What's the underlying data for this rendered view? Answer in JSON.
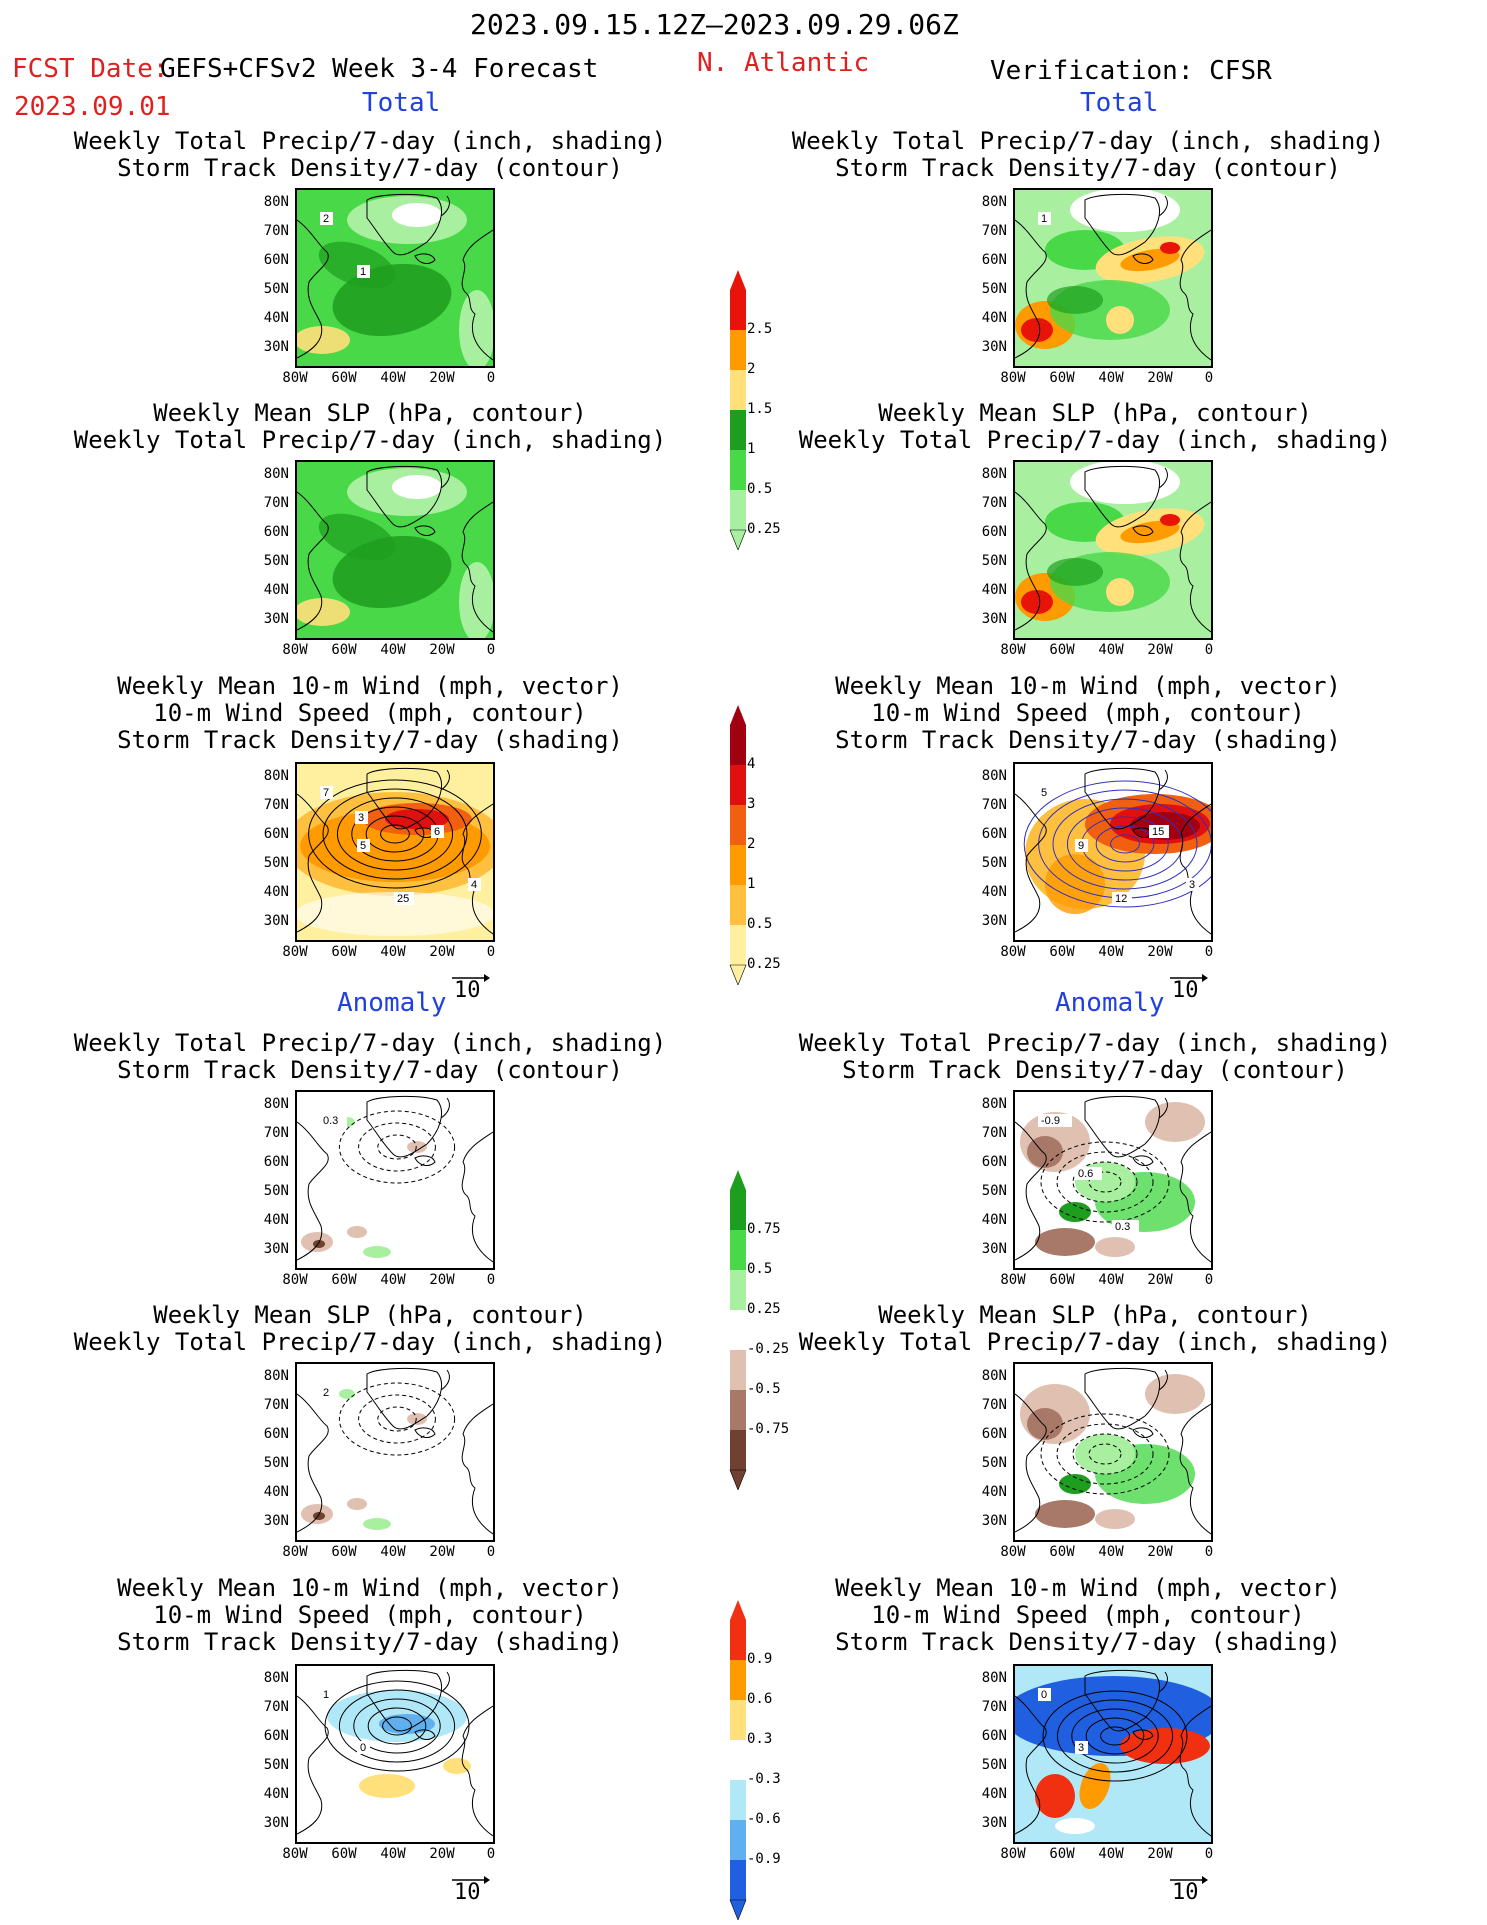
{
  "header": {
    "time_range": "2023.09.15.12Z–2023.09.29.06Z",
    "fcst_date_label": "FCST Date:",
    "forecast_system": "GEFS+CFSv2 Week 3-4 Forecast",
    "region": "N. Atlantic",
    "verification": "Verification: CFSR",
    "fcst_date": "2023.09.01"
  },
  "sections": {
    "total": "Total",
    "anomaly": "Anomaly"
  },
  "titles": {
    "precip_track": [
      "Weekly Total Precip/7-day (inch, shading)",
      "Storm Track Density/7-day (contour)"
    ],
    "slp_precip": [
      "Weekly Mean SLP (hPa, contour)",
      "Weekly Total Precip/7-day (inch, shading)"
    ],
    "wind_track": [
      "Weekly Mean 10-m Wind (mph, vector)",
      "10-m Wind Speed (mph, contour)",
      "Storm Track Density/7-day (shading)"
    ]
  },
  "axes": {
    "lat_labels": [
      "80N",
      "70N",
      "60N",
      "50N",
      "40N",
      "30N"
    ],
    "lon_labels": [
      "80W",
      "60W",
      "40W",
      "20W",
      "0"
    ]
  },
  "vector_reference": "10",
  "colorbars": {
    "precip_total": {
      "labels": [
        "2.5",
        "2",
        "1.5",
        "1",
        "0.5",
        "0.25"
      ],
      "colors": [
        "#e8140a",
        "#ff9a00",
        "#ffe07a",
        "#1e9e1e",
        "#48d848",
        "#a8f0a0"
      ]
    },
    "track_total": {
      "labels": [
        "4",
        "3",
        "2",
        "1",
        "0.5",
        "0.25"
      ],
      "colors": [
        "#a00010",
        "#e01010",
        "#f06010",
        "#ff9a00",
        "#ffc040",
        "#fff0a0"
      ]
    },
    "precip_anom": {
      "labels": [
        "0.75",
        "0.5",
        "0.25",
        "-0.25",
        "-0.5",
        "-0.75"
      ],
      "colors": [
        "#1e9e1e",
        "#48d848",
        "#a8f0a0",
        "#ffffff",
        "#e0c0b0",
        "#a87868",
        "#704030"
      ]
    },
    "track_anom": {
      "labels": [
        "0.9",
        "0.6",
        "0.3",
        "-0.3",
        "-0.6",
        "-0.9"
      ],
      "colors": [
        "#f03010",
        "#ff9a00",
        "#ffe07a",
        "#ffffff",
        "#b0e8f8",
        "#60b0f0",
        "#2060e0"
      ]
    }
  },
  "contour_labels": {
    "fcst_total_track": [
      "2",
      "1"
    ],
    "obs_total_track": [
      "1"
    ],
    "fcst_total_wind": [
      "7",
      "5",
      "25",
      "6",
      "4",
      "3"
    ],
    "obs_total_wind": [
      "5",
      "9",
      "12",
      "15",
      "3"
    ],
    "fcst_anom_precip": [
      "0.3"
    ],
    "obs_anom_precip": [
      "-0.9",
      "0.6",
      "0.3"
    ],
    "fcst_anom_slp": [
      "2"
    ],
    "fcst_anom_wind": [
      "1",
      "0"
    ],
    "obs_anom_wind": [
      "0",
      "3"
    ]
  }
}
